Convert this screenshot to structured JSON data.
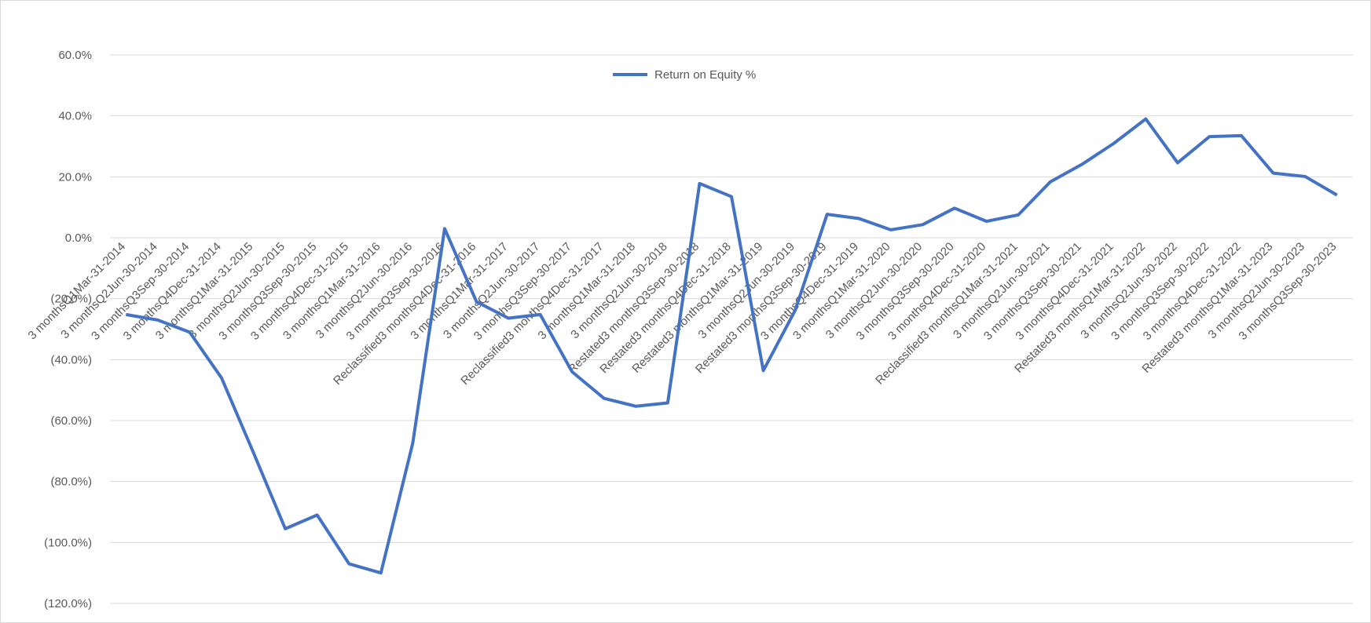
{
  "chart_data": {
    "type": "line",
    "categories": [
      "3 monthsQ1Mar-31-2014",
      "3 monthsQ2Jun-30-2014",
      "3 monthsQ3Sep-30-2014",
      "3 monthsQ4Dec-31-2014",
      "3 monthsQ1Mar-31-2015",
      "3 monthsQ2Jun-30-2015",
      "3 monthsQ3Sep-30-2015",
      "3 monthsQ4Dec-31-2015",
      "3 monthsQ1Mar-31-2016",
      "3 monthsQ2Jun-30-2016",
      "3 monthsQ3Sep-30-2016",
      "Reclassified3 monthsQ4Dec-31-2016",
      "3 monthsQ1Mar-31-2017",
      "3 monthsQ2Jun-30-2017",
      "3 monthsQ3Sep-30-2017",
      "Reclassified3 monthsQ4Dec-31-2017",
      "3 monthsQ1Mar-31-2018",
      "3 monthsQ2Jun-30-2018",
      "Restated3 monthsQ3Sep-30-2018",
      "Restated3 monthsQ4Dec-31-2018",
      "Restated3 monthsQ1Mar-31-2019",
      "3 monthsQ2Jun-30-2019",
      "Restated3 monthsQ3Sep-30-2019",
      "3 monthsQ4Dec-31-2019",
      "3 monthsQ1Mar-31-2020",
      "3 monthsQ2Jun-30-2020",
      "3 monthsQ3Sep-30-2020",
      "3 monthsQ4Dec-31-2020",
      "Reclassified3 monthsQ1Mar-31-2021",
      "3 monthsQ2Jun-30-2021",
      "3 monthsQ3Sep-30-2021",
      "3 monthsQ4Dec-31-2021",
      "Restated3 monthsQ1Mar-31-2022",
      "3 monthsQ2Jun-30-2022",
      "3 monthsQ3Sep-30-2022",
      "3 monthsQ4Dec-31-2022",
      "Restated3 monthsQ1Mar-31-2023",
      "3 monthsQ2Jun-30-2023",
      "3 monthsQ3Sep-30-2023"
    ],
    "series": [
      {
        "name": "Return on Equity %",
        "color": "#4472c4",
        "values": [
          -25.2,
          -27,
          -31,
          -46,
          -70.5,
          -95.5,
          -91,
          -107,
          -110,
          -67.4,
          3,
          -21,
          -26.4,
          -25.2,
          -44,
          -52.7,
          -55.3,
          -54.2,
          17.8,
          13.5,
          -43.6,
          -23.8,
          7.7,
          6.3,
          2.6,
          4.3,
          9.7,
          5.4,
          7.5,
          18.3,
          24.1,
          31,
          39,
          24.6,
          33.2,
          33.5,
          21.2,
          20.1,
          14
        ]
      }
    ],
    "ylim": [
      -120,
      60
    ],
    "yticks": [
      {
        "value": -120,
        "label": "(120.0%)"
      },
      {
        "value": -100,
        "label": "(100.0%)"
      },
      {
        "value": -80,
        "label": "(80.0%)"
      },
      {
        "value": -60,
        "label": "(60.0%)"
      },
      {
        "value": -40,
        "label": "(40.0%)"
      },
      {
        "value": -20,
        "label": "(20.0%)"
      },
      {
        "value": 0,
        "label": "0.0%"
      },
      {
        "value": 20,
        "label": "20.0%"
      },
      {
        "value": 40,
        "label": "40.0%"
      },
      {
        "value": 60,
        "label": "60.0%"
      }
    ],
    "grid": true,
    "legend": "top"
  }
}
